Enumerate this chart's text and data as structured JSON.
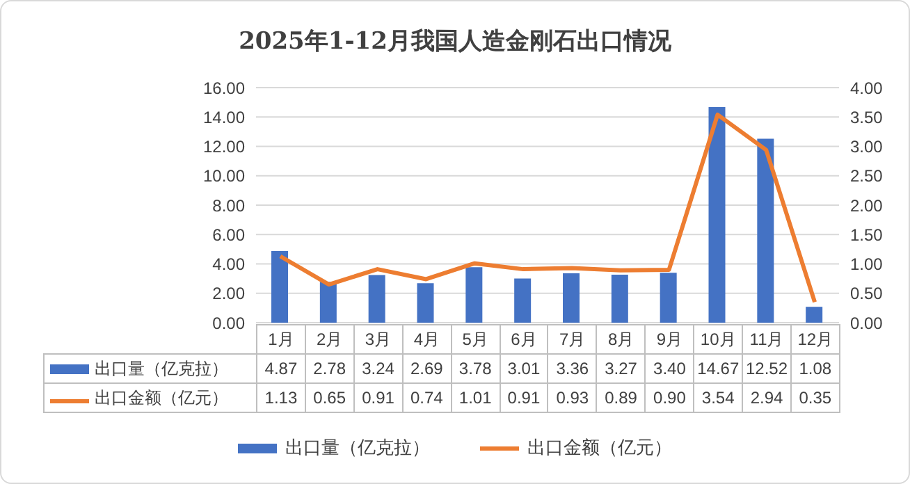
{
  "chart_data": {
    "type": "bar",
    "title": "2025年1-12月我国人造金刚石出口情况",
    "categories": [
      "1月",
      "2月",
      "3月",
      "4月",
      "5月",
      "6月",
      "7月",
      "8月",
      "9月",
      "10月",
      "11月",
      "12月"
    ],
    "series": [
      {
        "name": "出口量（亿克拉）",
        "color": "#4472c4",
        "values": [
          4.87,
          2.78,
          3.24,
          2.69,
          3.78,
          3.01,
          3.36,
          3.27,
          3.4,
          14.67,
          12.52,
          1.08
        ],
        "value_labels": [
          "4.87",
          "2.78",
          "3.24",
          "2.69",
          "3.78",
          "3.01",
          "3.36",
          "3.27",
          "3.40",
          "14.67",
          "12.52",
          "1.08"
        ]
      },
      {
        "name": "出口金额（亿元）",
        "type": "line",
        "axis": "y2",
        "color": "#ed7d31",
        "values": [
          1.13,
          0.65,
          0.91,
          0.74,
          1.01,
          0.91,
          0.93,
          0.89,
          0.9,
          3.54,
          2.94,
          0.35
        ],
        "value_labels": [
          "1.13",
          "0.65",
          "0.91",
          "0.74",
          "1.01",
          "0.91",
          "0.93",
          "0.89",
          "0.90",
          "3.54",
          "2.94",
          "0.35"
        ]
      }
    ],
    "ylim": [
      0,
      16
    ],
    "yticks": [
      {
        "value": 0,
        "label": "0.00"
      },
      {
        "value": 2,
        "label": "2.00"
      },
      {
        "value": 4,
        "label": "4.00"
      },
      {
        "value": 6,
        "label": "6.00"
      },
      {
        "value": 8,
        "label": "8.00"
      },
      {
        "value": 10,
        "label": "10.00"
      },
      {
        "value": 12,
        "label": "12.00"
      },
      {
        "value": 14,
        "label": "14.00"
      },
      {
        "value": 16,
        "label": "16.00"
      }
    ],
    "y2lim": [
      0,
      4
    ],
    "y2ticks": [
      {
        "value": 0,
        "label": "0.00"
      },
      {
        "value": 0.5,
        "label": "0.50"
      },
      {
        "value": 1,
        "label": "1.00"
      },
      {
        "value": 1.5,
        "label": "1.50"
      },
      {
        "value": 2,
        "label": "2.00"
      },
      {
        "value": 2.5,
        "label": "2.50"
      },
      {
        "value": 3,
        "label": "3.00"
      },
      {
        "value": 3.5,
        "label": "3.50"
      },
      {
        "value": 4,
        "label": "4.00"
      }
    ],
    "grid": "y",
    "legend": "bottom"
  }
}
